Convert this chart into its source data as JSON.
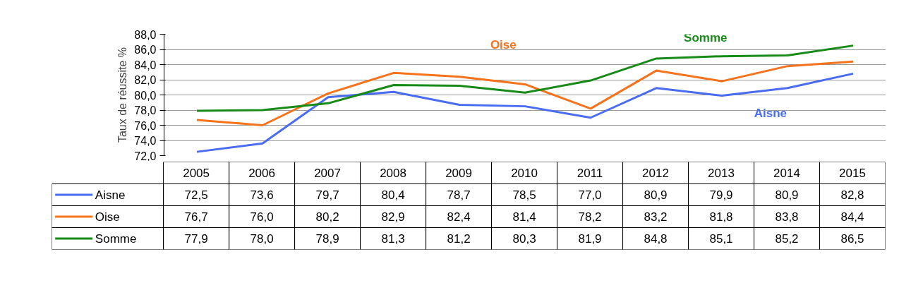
{
  "chart_data": {
    "type": "line",
    "ylabel": "Taux de réussite %",
    "categories": [
      "2005",
      "2006",
      "2007",
      "2008",
      "2009",
      "2010",
      "2011",
      "2012",
      "2013",
      "2014",
      "2015"
    ],
    "ylim": [
      72,
      88
    ],
    "yticks": [
      {
        "value": 72,
        "label": "72,0"
      },
      {
        "value": 74,
        "label": "74,0"
      },
      {
        "value": 76,
        "label": "76,0"
      },
      {
        "value": 78,
        "label": "78,0"
      },
      {
        "value": 80,
        "label": "80,0"
      },
      {
        "value": 82,
        "label": "82,0"
      },
      {
        "value": 84,
        "label": "84,0"
      },
      {
        "value": 86,
        "label": "86,0"
      },
      {
        "value": 88,
        "label": "88,0"
      }
    ],
    "grid": "y",
    "legend": "bottom",
    "marker": "none",
    "line_style": "solid",
    "series": [
      {
        "name": "Aisne",
        "color": "#4a6cf0",
        "values": [
          72.5,
          73.6,
          79.7,
          80.4,
          78.7,
          78.5,
          77.0,
          80.9,
          79.9,
          80.9,
          82.8
        ],
        "value_labels": [
          "72,5",
          "73,6",
          "79,7",
          "80,4",
          "78,7",
          "78,5",
          "77,0",
          "80,9",
          "79,9",
          "80,9",
          "82,8"
        ]
      },
      {
        "name": "Oise",
        "color": "#f5731c",
        "values": [
          76.7,
          76.0,
          80.2,
          82.9,
          82.4,
          81.4,
          78.2,
          83.2,
          81.8,
          83.8,
          84.4
        ],
        "value_labels": [
          "76,7",
          "76,0",
          "80,2",
          "82,9",
          "82,4",
          "81,4",
          "78,2",
          "83,2",
          "81,8",
          "83,8",
          "84,4"
        ]
      },
      {
        "name": "Somme",
        "color": "#178a17",
        "values": [
          77.9,
          78.0,
          78.9,
          81.3,
          81.2,
          80.3,
          81.9,
          84.8,
          85.1,
          85.2,
          86.5
        ],
        "value_labels": [
          "77,9",
          "78,0",
          "78,9",
          "81,3",
          "81,2",
          "80,3",
          "81,9",
          "84,8",
          "85,1",
          "85,2",
          "86,5"
        ]
      }
    ],
    "annotations": [
      "Aisne",
      "Oise",
      "Somme"
    ]
  }
}
